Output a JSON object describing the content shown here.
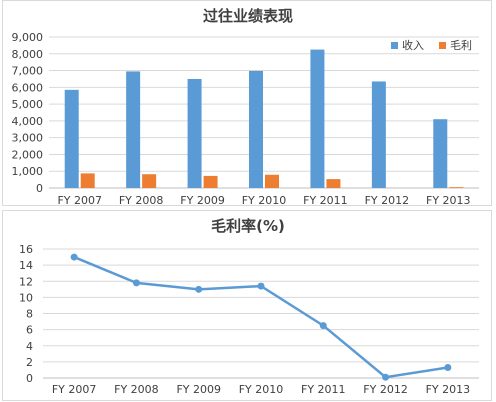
{
  "colors": {
    "revenue": "#5b9bd5",
    "gross_profit": "#ed7d31",
    "line": "#5b9bd5",
    "grid": "#d9d9d9",
    "axis": "#bfbfbf"
  },
  "chart_data": [
    {
      "type": "bar",
      "title": "过往业绩表现",
      "categories": [
        "FY 2007",
        "FY 2008",
        "FY 2009",
        "FY 2010",
        "FY 2011",
        "FY 2012",
        "FY 2013"
      ],
      "series": [
        {
          "name": "收入",
          "values": [
            5850,
            6950,
            6500,
            6980,
            8250,
            6350,
            4100
          ]
        },
        {
          "name": "毛利",
          "values": [
            870,
            820,
            720,
            790,
            530,
            0,
            50
          ]
        }
      ],
      "ylim": [
        0,
        9000
      ],
      "yticks": [
        "9,000",
        "8,000",
        "7,000",
        "6,000",
        "5,000",
        "4,000",
        "3,000",
        "2,000",
        "1,000",
        "0"
      ],
      "grid": true,
      "legend": "top-right"
    },
    {
      "type": "line",
      "title": "毛利率(%)",
      "categories": [
        "FY 2007",
        "FY 2008",
        "FY 2009",
        "FY 2010",
        "FY 2011",
        "FY 2012",
        "FY 2013"
      ],
      "series": [
        {
          "values": [
            15.0,
            11.8,
            11.0,
            11.4,
            6.5,
            0.1,
            1.3
          ]
        }
      ],
      "ylim": [
        0,
        16
      ],
      "yticks": [
        "16",
        "14",
        "12",
        "10",
        "8",
        "6",
        "4",
        "2",
        "0"
      ],
      "grid": true
    }
  ]
}
